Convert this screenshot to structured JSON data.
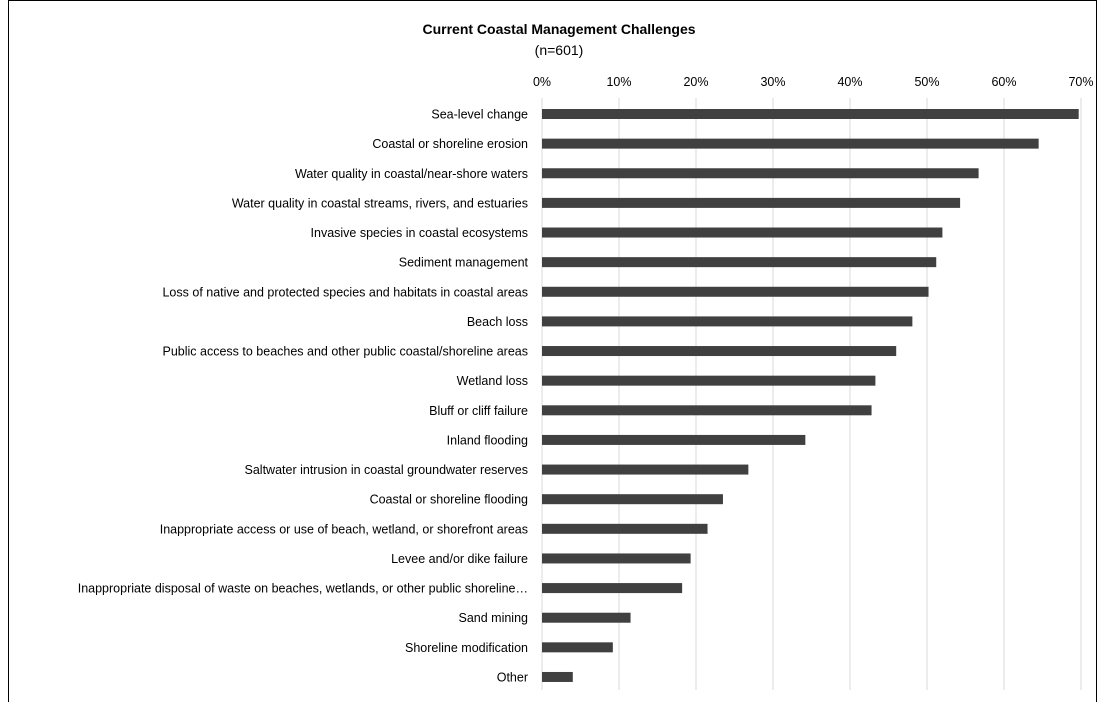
{
  "chart_data": {
    "type": "bar",
    "orientation": "horizontal",
    "title": "Current Coastal Management Challenges",
    "subtitle": "(n=601)",
    "xlim": [
      0,
      0.7
    ],
    "x_ticks": [
      "0%",
      "10%",
      "20%",
      "30%",
      "40%",
      "50%",
      "60%",
      "70%"
    ],
    "x_tick_values": [
      0,
      0.1,
      0.2,
      0.3,
      0.4,
      0.5,
      0.6,
      0.7
    ],
    "grid": true,
    "axis_position": "top",
    "bar_color": "#404040",
    "categories": [
      "Sea-level change",
      "Coastal or shoreline erosion",
      "Water quality in coastal/near-shore waters",
      "Water quality in coastal streams, rivers, and estuaries",
      "Invasive species in coastal ecosystems",
      "Sediment management",
      "Loss of native and protected species and habitats in coastal areas",
      "Beach loss",
      "Public access to beaches and other public coastal/shoreline areas",
      "Wetland loss",
      "Bluff or cliff failure",
      "Inland flooding",
      "Saltwater intrusion in coastal groundwater reserves",
      "Coastal or shoreline flooding",
      "Inappropriate access or use of beach, wetland, or shorefront areas",
      "Levee and/or dike failure",
      "Inappropriate disposal of waste on beaches, wetlands, or other public shoreline…",
      "Sand mining",
      "Shoreline modification",
      "Other"
    ],
    "values": [
      0.697,
      0.645,
      0.567,
      0.543,
      0.52,
      0.512,
      0.502,
      0.481,
      0.46,
      0.433,
      0.428,
      0.342,
      0.268,
      0.235,
      0.215,
      0.193,
      0.182,
      0.115,
      0.092,
      0.04
    ]
  }
}
